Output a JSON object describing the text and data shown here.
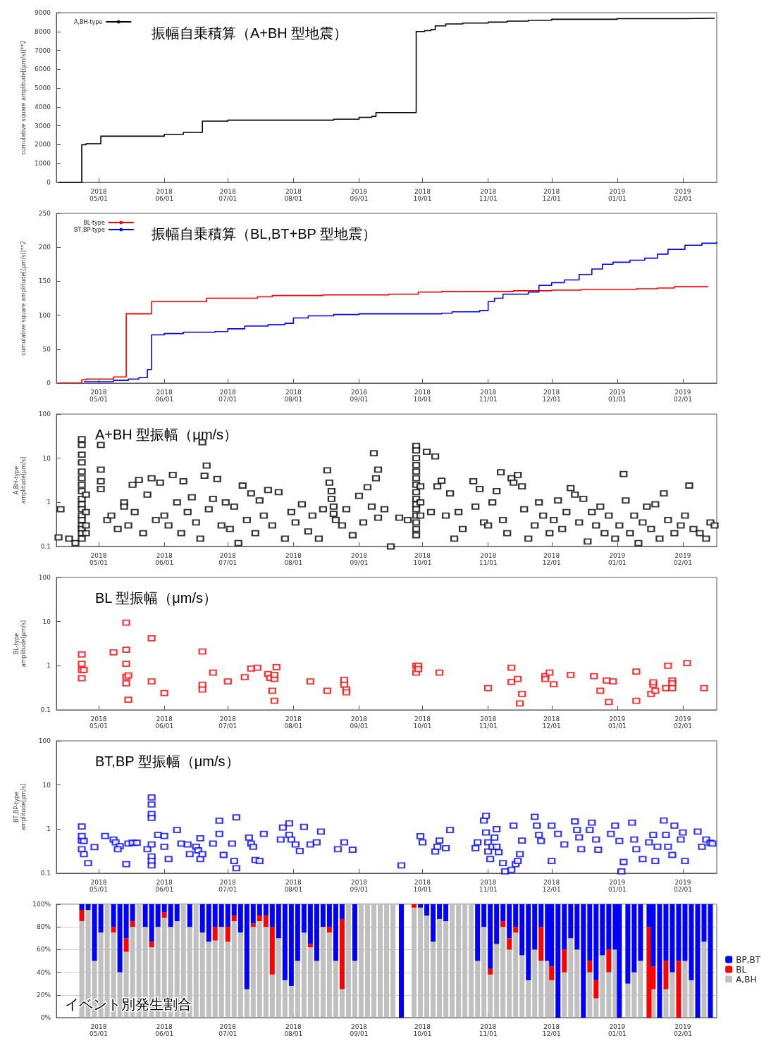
{
  "chart_data": [
    {
      "type": "step",
      "title": "振幅自乗積算（A+BH 型地震）",
      "ylabel": "cumulative square amplitude[(μm/s)]**2",
      "xlim": [
        "2018-04-11",
        "2019-02-17"
      ],
      "ylim": [
        0,
        9000
      ],
      "yticks": [
        0,
        1000,
        2000,
        3000,
        4000,
        5000,
        6000,
        7000,
        8000,
        9000
      ],
      "legend": "top left",
      "xticks": [
        {
          "value": "2018-05-01",
          "label": "2018\n05/01"
        },
        {
          "value": "2018-06-01",
          "label": "2018\n06/01"
        },
        {
          "value": "2018-07-01",
          "label": "2018\n07/01"
        },
        {
          "value": "2018-08-01",
          "label": "2018\n08/01"
        },
        {
          "value": "2018-09-01",
          "label": "2018\n09/01"
        },
        {
          "value": "2018-10-01",
          "label": "2018\n10/01"
        },
        {
          "value": "2018-11-01",
          "label": "2018\n11/01"
        },
        {
          "value": "2018-12-01",
          "label": "2018\n12/01"
        },
        {
          "value": "2019-01-01",
          "label": "2019\n01/01"
        },
        {
          "value": "2019-02-01",
          "label": "2019\n02/01"
        }
      ],
      "series": [
        {
          "name": "A,BH-type",
          "color": "#000000",
          "x": [
            "2018-04-12",
            "2018-04-23",
            "2018-04-25",
            "2018-05-02",
            "2018-06-01",
            "2018-06-10",
            "2018-06-19",
            "2018-07-01",
            "2018-08-20",
            "2018-09-01",
            "2018-09-07",
            "2018-09-09",
            "2018-09-28",
            "2018-10-02",
            "2018-10-05",
            "2018-10-07",
            "2018-10-12",
            "2018-10-20",
            "2018-11-01",
            "2018-11-10",
            "2018-11-20",
            "2018-12-01",
            "2019-01-01",
            "2019-02-01",
            "2019-02-16"
          ],
          "values": [
            0,
            2000,
            2050,
            2450,
            2550,
            2650,
            3250,
            3300,
            3350,
            3450,
            3500,
            3700,
            8000,
            8050,
            8100,
            8300,
            8400,
            8450,
            8500,
            8550,
            8600,
            8650,
            8680,
            8700,
            8720
          ]
        }
      ]
    },
    {
      "type": "step",
      "title": "振幅自乗積算（BL,BT+BP 型地震）",
      "ylabel": "cumulative square amplitude[(μm/s)]**2",
      "xlim": [
        "2018-04-11",
        "2019-02-17"
      ],
      "ylim": [
        0,
        250
      ],
      "yticks": [
        0,
        50,
        100,
        150,
        200,
        250
      ],
      "legend": "top left",
      "xticks": [
        {
          "value": "2018-05-01",
          "label": "2018\n05/01"
        },
        {
          "value": "2018-06-01",
          "label": "2018\n06/01"
        },
        {
          "value": "2018-07-01",
          "label": "2018\n07/01"
        },
        {
          "value": "2018-08-01",
          "label": "2018\n08/01"
        },
        {
          "value": "2018-09-01",
          "label": "2018\n09/01"
        },
        {
          "value": "2018-10-01",
          "label": "2018\n10/01"
        },
        {
          "value": "2018-11-01",
          "label": "2018\n11/01"
        },
        {
          "value": "2018-12-01",
          "label": "2018\n12/01"
        },
        {
          "value": "2019-01-01",
          "label": "2019\n01/01"
        },
        {
          "value": "2019-02-01",
          "label": "2019\n02/01"
        }
      ],
      "series": [
        {
          "name": "BL-type",
          "color": "#ff0000",
          "x": [
            "2018-04-12",
            "2018-04-23",
            "2018-04-25",
            "2018-05-08",
            "2018-05-14",
            "2018-05-26",
            "2018-06-21",
            "2018-07-15",
            "2018-07-22",
            "2018-08-15",
            "2018-09-15",
            "2018-09-29",
            "2018-10-10",
            "2018-11-13",
            "2018-12-01",
            "2018-12-15",
            "2019-01-10",
            "2019-01-20",
            "2019-01-28",
            "2019-02-13"
          ],
          "values": [
            0,
            5,
            6,
            9,
            102,
            120,
            125,
            127,
            129,
            130,
            131,
            134,
            135,
            136,
            137,
            138,
            139,
            140,
            142,
            142
          ]
        },
        {
          "name": "BT,BP-type",
          "color": "#0000ff",
          "x": [
            "2018-04-24",
            "2018-05-08",
            "2018-05-15",
            "2018-05-20",
            "2018-05-24",
            "2018-05-26",
            "2018-06-01",
            "2018-06-10",
            "2018-06-25",
            "2018-07-01",
            "2018-07-09",
            "2018-07-20",
            "2018-07-28",
            "2018-08-01",
            "2018-08-08",
            "2018-08-20",
            "2018-09-01",
            "2018-10-10",
            "2018-10-15",
            "2018-10-28",
            "2018-11-01",
            "2018-11-04",
            "2018-11-08",
            "2018-11-20",
            "2018-11-25",
            "2018-12-01",
            "2018-12-07",
            "2018-12-14",
            "2018-12-20",
            "2018-12-25",
            "2018-12-30",
            "2019-01-07",
            "2019-01-14",
            "2019-01-20",
            "2019-01-25",
            "2019-02-02",
            "2019-02-10",
            "2019-02-17"
          ],
          "values": [
            2,
            4,
            6,
            8,
            20,
            71,
            73,
            75,
            76,
            80,
            84,
            86,
            88,
            96,
            99,
            101,
            102,
            103,
            105,
            107,
            120,
            125,
            131,
            134,
            144,
            148,
            152,
            160,
            168,
            175,
            178,
            181,
            184,
            190,
            197,
            203,
            206,
            208
          ]
        }
      ]
    },
    {
      "type": "scatter",
      "title": "A+BH 型振幅（μm/s）",
      "ylabel": "A,BH-type\namplitude[μm/s]",
      "log": "y",
      "marker": "square",
      "xlim": [
        "2018-04-11",
        "2019-02-17"
      ],
      "ylim": [
        0.1,
        100
      ],
      "yticks": [
        0.1,
        1,
        10,
        100
      ],
      "xticks": [
        {
          "value": "2018-05-01",
          "label": "2018\n05/01"
        },
        {
          "value": "2018-06-01",
          "label": "2018\n06/01"
        },
        {
          "value": "2018-07-01",
          "label": "2018\n07/01"
        },
        {
          "value": "2018-08-01",
          "label": "2018\n08/01"
        },
        {
          "value": "2018-09-01",
          "label": "2018\n09/01"
        },
        {
          "value": "2018-10-01",
          "label": "2018\n10/01"
        },
        {
          "value": "2018-11-01",
          "label": "2018\n11/01"
        },
        {
          "value": "2018-12-01",
          "label": "2018\n12/01"
        },
        {
          "value": "2019-01-01",
          "label": "2019\n01/01"
        },
        {
          "value": "2019-02-01",
          "label": "2019\n02/01"
        }
      ],
      "series": [
        {
          "color": "#000000",
          "x": [
            "2018-04-12",
            "2018-04-13",
            "2018-04-17",
            "2018-04-20",
            "2018-04-23",
            "2018-04-23",
            "2018-04-23",
            "2018-04-23",
            "2018-04-23",
            "2018-04-23",
            "2018-04-23",
            "2018-04-23",
            "2018-04-23",
            "2018-04-23",
            "2018-04-23",
            "2018-04-23",
            "2018-04-23",
            "2018-04-23",
            "2018-04-23",
            "2018-04-23",
            "2018-04-23",
            "2018-04-25",
            "2018-04-25",
            "2018-04-25",
            "2018-04-25",
            "2018-05-02",
            "2018-05-02",
            "2018-05-02",
            "2018-05-02",
            "2018-05-05",
            "2018-05-07",
            "2018-05-10",
            "2018-05-13",
            "2018-05-13",
            "2018-05-15",
            "2018-05-17",
            "2018-05-18",
            "2018-05-20",
            "2018-05-22",
            "2018-05-24",
            "2018-05-26",
            "2018-05-28",
            "2018-05-30",
            "2018-06-01",
            "2018-06-03",
            "2018-06-05",
            "2018-06-07",
            "2018-06-09",
            "2018-06-10",
            "2018-06-12",
            "2018-06-14",
            "2018-06-16",
            "2018-06-18",
            "2018-06-19",
            "2018-06-20",
            "2018-06-21",
            "2018-06-22",
            "2018-06-24",
            "2018-06-26",
            "2018-06-28",
            "2018-06-30",
            "2018-07-02",
            "2018-07-04",
            "2018-07-06",
            "2018-07-08",
            "2018-07-10",
            "2018-07-12",
            "2018-07-14",
            "2018-07-16",
            "2018-07-18",
            "2018-07-20",
            "2018-07-22",
            "2018-07-25",
            "2018-07-28",
            "2018-07-31",
            "2018-08-02",
            "2018-08-05",
            "2018-08-08",
            "2018-08-10",
            "2018-08-13",
            "2018-08-15",
            "2018-08-17",
            "2018-08-18",
            "2018-08-19",
            "2018-08-19",
            "2018-08-20",
            "2018-08-20",
            "2018-08-21",
            "2018-08-24",
            "2018-08-26",
            "2018-08-29",
            "2018-09-01",
            "2018-09-03",
            "2018-09-05",
            "2018-09-07",
            "2018-09-08",
            "2018-09-09",
            "2018-09-10",
            "2018-09-10",
            "2018-09-13",
            "2018-09-16",
            "2018-09-20",
            "2018-09-24",
            "2018-09-28",
            "2018-09-28",
            "2018-09-28",
            "2018-09-28",
            "2018-09-28",
            "2018-09-28",
            "2018-09-28",
            "2018-09-28",
            "2018-09-28",
            "2018-09-28",
            "2018-09-28",
            "2018-09-28",
            "2018-09-28",
            "2018-09-28",
            "2018-09-28",
            "2018-09-30",
            "2018-09-30",
            "2018-09-30",
            "2018-10-03",
            "2018-10-05",
            "2018-10-07",
            "2018-10-08",
            "2018-10-10",
            "2018-10-12",
            "2018-10-14",
            "2018-10-16",
            "2018-10-18",
            "2018-10-20",
            "2018-10-25",
            "2018-10-26",
            "2018-10-28",
            "2018-10-30",
            "2018-11-01",
            "2018-11-03",
            "2018-11-05",
            "2018-11-07",
            "2018-11-08",
            "2018-11-10",
            "2018-11-12",
            "2018-11-13",
            "2018-11-15",
            "2018-11-17",
            "2018-11-18",
            "2018-11-20",
            "2018-11-23",
            "2018-11-25",
            "2018-11-27",
            "2018-11-30",
            "2018-12-02",
            "2018-12-04",
            "2018-12-06",
            "2018-12-08",
            "2018-12-10",
            "2018-12-12",
            "2018-12-14",
            "2018-12-16",
            "2018-12-18",
            "2018-12-20",
            "2018-12-22",
            "2018-12-24",
            "2018-12-26",
            "2018-12-28",
            "2018-12-31",
            "2019-01-02",
            "2019-01-04",
            "2019-01-05",
            "2019-01-07",
            "2019-01-09",
            "2019-01-11",
            "2019-01-13",
            "2019-01-15",
            "2019-01-17",
            "2019-01-19",
            "2019-01-21",
            "2019-01-23",
            "2019-01-25",
            "2019-01-28",
            "2019-01-31",
            "2019-02-02",
            "2019-02-04",
            "2019-02-06",
            "2019-02-09",
            "2019-02-12",
            "2019-02-14",
            "2019-02-16"
          ],
          "values": [
            0.16,
            0.7,
            0.15,
            0.12,
            27,
            20,
            12,
            8,
            5,
            3.5,
            2.5,
            1.8,
            1.2,
            0.9,
            0.7,
            0.5,
            0.4,
            0.3,
            0.25,
            0.2,
            0.15,
            1.5,
            0.6,
            0.3,
            0.2,
            20,
            5.5,
            3,
            2,
            0.4,
            0.5,
            0.25,
            1,
            0.8,
            0.3,
            2.5,
            0.6,
            3.2,
            0.2,
            1.5,
            3.5,
            0.4,
            2.8,
            0.5,
            0.3,
            4.2,
            1,
            0.2,
            3,
            0.6,
            1.3,
            0.35,
            0.15,
            23,
            4,
            6.8,
            0.7,
            1.2,
            3.4,
            0.3,
            1,
            0.25,
            0.8,
            0.12,
            2.4,
            0.4,
            1.6,
            0.2,
            1.1,
            0.5,
            1.9,
            0.3,
            1.7,
            0.15,
            0.6,
            0.35,
            0.9,
            0.22,
            0.5,
            0.15,
            0.7,
            5.3,
            2.8,
            1.8,
            1.2,
            0.8,
            0.55,
            0.4,
            0.3,
            0.7,
            0.18,
            1.4,
            0.35,
            2.2,
            0.8,
            13,
            3.5,
            5.5,
            0.45,
            0.7,
            0.1,
            0.45,
            0.4,
            19,
            15,
            10,
            7,
            5,
            3.5,
            2.5,
            1.7,
            1.2,
            0.9,
            0.7,
            0.5,
            0.35,
            0.25,
            0.18,
            2.3,
            1,
            0.5,
            14,
            0.6,
            11,
            2.3,
            3.1,
            0.5,
            1.6,
            0.15,
            0.6,
            0.25,
            3,
            0.8,
            2,
            0.35,
            0.3,
            1,
            1.8,
            4.8,
            0.4,
            0.2,
            3.5,
            2.8,
            4.2,
            2.3,
            0.7,
            0.15,
            0.3,
            1,
            0.5,
            0.2,
            0.4,
            1.1,
            0.25,
            0.6,
            2.1,
            1.5,
            0.35,
            1.2,
            0.13,
            0.6,
            0.3,
            0.8,
            0.2,
            0.5,
            0.15,
            0.3,
            4.4,
            1.1,
            0.2,
            0.5,
            0.12,
            0.35,
            0.8,
            0.25,
            0.9,
            0.15,
            1.6,
            0.4,
            0.2,
            0.3,
            0.5,
            2.4,
            0.25,
            0.2,
            0.15,
            0.35,
            0.3
          ]
        }
      ]
    },
    {
      "type": "scatter",
      "title": "BL 型振幅（μm/s）",
      "ylabel": "BL-type\namplitude[μm/s]",
      "log": "y",
      "marker": "square",
      "xlim": [
        "2018-04-11",
        "2019-02-17"
      ],
      "ylim": [
        0.1,
        100
      ],
      "yticks": [
        0.1,
        1,
        10,
        100
      ],
      "xticks": [
        {
          "value": "2018-05-01",
          "label": "2018\n05/01"
        },
        {
          "value": "2018-06-01",
          "label": "2018\n06/01"
        },
        {
          "value": "2018-07-01",
          "label": "2018\n07/01"
        },
        {
          "value": "2018-08-01",
          "label": "2018\n08/01"
        },
        {
          "value": "2018-09-01",
          "label": "2018\n09/01"
        },
        {
          "value": "2018-10-01",
          "label": "2018\n10/01"
        },
        {
          "value": "2018-11-01",
          "label": "2018\n11/01"
        },
        {
          "value": "2018-12-01",
          "label": "2018\n12/01"
        },
        {
          "value": "2019-01-01",
          "label": "2019\n01/01"
        },
        {
          "value": "2019-02-01",
          "label": "2019\n02/01"
        }
      ],
      "series": [
        {
          "color": "#ff0000",
          "x": [
            "2018-04-23",
            "2018-04-23",
            "2018-04-23",
            "2018-04-24",
            "2018-04-23",
            "2018-05-08",
            "2018-05-14",
            "2018-05-14",
            "2018-05-14",
            "2018-05-14",
            "2018-05-15",
            "2018-05-14",
            "2018-05-15",
            "2018-05-26",
            "2018-05-26",
            "2018-06-01",
            "2018-06-19",
            "2018-06-19",
            "2018-06-19",
            "2018-06-24",
            "2018-07-01",
            "2018-07-09",
            "2018-07-12",
            "2018-07-15",
            "2018-07-20",
            "2018-07-21",
            "2018-07-23",
            "2018-07-23",
            "2018-07-24",
            "2018-07-22",
            "2018-07-23",
            "2018-08-09",
            "2018-08-17",
            "2018-08-25",
            "2018-08-25",
            "2018-08-26",
            "2018-08-26",
            "2018-09-28",
            "2018-09-29",
            "2018-09-28",
            "2018-09-29",
            "2018-10-09",
            "2018-11-01",
            "2018-11-12",
            "2018-11-12",
            "2018-11-15",
            "2018-11-16",
            "2018-11-17",
            "2018-11-28",
            "2018-11-28",
            "2018-11-30",
            "2018-12-02",
            "2018-12-10",
            "2018-12-21",
            "2018-12-24",
            "2018-12-27",
            "2018-12-30",
            "2018-12-28",
            "2019-01-10",
            "2019-01-10",
            "2019-01-17",
            "2019-01-18",
            "2019-01-19",
            "2019-01-18",
            "2019-01-24",
            "2019-01-25",
            "2019-01-27",
            "2019-01-27",
            "2019-01-27",
            "2019-02-03",
            "2019-02-11"
          ],
          "values": [
            1.8,
            1.1,
            0.8,
            0.8,
            0.52,
            2,
            9.5,
            2.3,
            1.1,
            0.56,
            0.6,
            0.4,
            0.17,
            4.2,
            0.44,
            0.24,
            2.1,
            0.37,
            0.29,
            0.7,
            0.44,
            0.55,
            0.86,
            0.9,
            0.65,
            0.53,
            0.5,
            0.62,
            0.93,
            0.27,
            0.16,
            0.44,
            0.27,
            0.48,
            0.37,
            0.29,
            0.25,
            1,
            1,
            0.7,
            0.84,
            0.7,
            0.31,
            0.9,
            0.43,
            0.5,
            0.14,
            0.23,
            0.58,
            0.5,
            0.7,
            0.38,
            0.62,
            0.58,
            0.27,
            0.46,
            0.44,
            0.15,
            0.74,
            0.16,
            0.23,
            0.37,
            0.27,
            0.42,
            0.31,
            1,
            0.46,
            0.4,
            0.31,
            1.15,
            0.31
          ]
        }
      ]
    },
    {
      "type": "scatter",
      "title": "BT,BP 型振幅（μm/s）",
      "ylabel": "BT,BP-type\namplitude[μm/s]",
      "log": "y",
      "marker": "square",
      "xlim": [
        "2018-04-11",
        "2019-02-17"
      ],
      "ylim": [
        0.1,
        100
      ],
      "yticks": [
        0.1,
        1,
        10,
        100
      ],
      "xticks": [
        {
          "value": "2018-05-01",
          "label": "2018\n05/01"
        },
        {
          "value": "2018-06-01",
          "label": "2018\n06/01"
        },
        {
          "value": "2018-07-01",
          "label": "2018\n07/01"
        },
        {
          "value": "2018-08-01",
          "label": "2018\n08/01"
        },
        {
          "value": "2018-09-01",
          "label": "2018\n09/01"
        },
        {
          "value": "2018-10-01",
          "label": "2018\n10/01"
        },
        {
          "value": "2018-11-01",
          "label": "2018\n11/01"
        },
        {
          "value": "2018-12-01",
          "label": "2018\n12/01"
        },
        {
          "value": "2019-01-01",
          "label": "2019\n01/01"
        },
        {
          "value": "2019-02-01",
          "label": "2019\n02/01"
        }
      ],
      "series": [
        {
          "color": "#0000ff",
          "x": [
            "2018-04-23",
            "2018-04-23",
            "2018-04-24",
            "2018-04-23",
            "2018-04-24",
            "2018-04-23",
            "2018-04-26",
            "2018-04-29",
            "2018-05-04",
            "2018-05-08",
            "2018-05-09",
            "2018-05-11",
            "2018-05-10",
            "2018-05-14",
            "2018-05-15",
            "2018-05-17",
            "2018-05-19",
            "2018-05-24",
            "2018-05-26",
            "2018-05-26",
            "2018-05-26",
            "2018-05-26",
            "2018-05-26",
            "2018-05-26",
            "2018-05-26",
            "2018-05-26",
            "2018-05-29",
            "2018-06-01",
            "2018-06-01",
            "2018-06-03",
            "2018-06-07",
            "2018-06-09",
            "2018-06-12",
            "2018-06-13",
            "2018-06-16",
            "2018-06-17",
            "2018-06-18",
            "2018-06-18",
            "2018-06-19",
            "2018-06-24",
            "2018-06-27",
            "2018-06-27",
            "2018-06-29",
            "2018-07-03",
            "2018-07-05",
            "2018-07-04",
            "2018-07-05",
            "2018-07-11",
            "2018-07-12",
            "2018-07-13",
            "2018-07-14",
            "2018-07-16",
            "2018-07-18",
            "2018-07-26",
            "2018-07-27",
            "2018-07-30",
            "2018-07-30",
            "2018-07-31",
            "2018-08-02",
            "2018-08-04",
            "2018-08-06",
            "2018-08-09",
            "2018-08-12",
            "2018-08-14",
            "2018-08-22",
            "2018-08-25",
            "2018-08-29",
            "2018-09-21",
            "2018-09-30",
            "2018-10-01",
            "2018-10-07",
            "2018-10-09",
            "2018-10-08",
            "2018-10-12",
            "2018-10-14",
            "2018-10-26",
            "2018-10-27",
            "2018-10-30",
            "2018-10-31",
            "2018-10-31",
            "2018-11-01",
            "2018-11-01",
            "2018-11-02",
            "2018-11-03",
            "2018-11-04",
            "2018-11-05",
            "2018-11-05",
            "2018-11-06",
            "2018-11-08",
            "2018-11-09",
            "2018-11-12",
            "2018-11-14",
            "2018-11-15",
            "2018-11-16",
            "2018-11-13",
            "2018-11-17",
            "2018-11-23",
            "2018-11-24",
            "2018-11-25",
            "2018-11-26",
            "2018-12-01",
            "2018-12-01",
            "2018-12-04",
            "2018-12-07",
            "2018-12-12",
            "2018-12-13",
            "2018-12-14",
            "2018-12-15",
            "2018-12-19",
            "2018-12-20",
            "2018-12-22",
            "2018-12-23",
            "2018-12-29",
            "2018-12-31",
            "2019-01-02",
            "2019-01-04",
            "2019-01-03",
            "2019-01-08",
            "2019-01-09",
            "2019-01-10",
            "2019-01-13",
            "2019-01-16",
            "2019-01-18",
            "2019-01-19",
            "2019-01-20",
            "2019-01-23",
            "2019-01-24",
            "2019-01-25",
            "2019-01-27",
            "2019-01-28",
            "2019-01-31",
            "2019-02-01",
            "2019-02-02",
            "2019-02-08",
            "2019-02-10",
            "2019-02-12",
            "2019-02-14",
            "2019-02-15"
          ],
          "values": [
            1.15,
            0.55,
            0.54,
            0.35,
            0.27,
            0.7,
            0.17,
            0.39,
            0.7,
            0.58,
            0.5,
            0.41,
            0.35,
            0.16,
            0.47,
            0.49,
            0.49,
            0.35,
            5.2,
            3.6,
            2.2,
            1.8,
            0.45,
            0.24,
            0.19,
            0.15,
            0.74,
            0.7,
            0.4,
            0.21,
            0.95,
            0.47,
            0.45,
            0.27,
            0.4,
            0.33,
            0.62,
            0.21,
            0.27,
            0.47,
            0.78,
            1.55,
            0.26,
            0.47,
            1.85,
            0.19,
            0.13,
            0.64,
            0.47,
            0.4,
            0.2,
            0.19,
            0.78,
            0.58,
            1.08,
            1.35,
            0.74,
            0.58,
            0.45,
            0.32,
            1.13,
            0.45,
            0.5,
            0.88,
            0.35,
            0.5,
            0.34,
            0.15,
            0.69,
            0.5,
            0.31,
            0.55,
            0.4,
            0.37,
            0.95,
            0.37,
            0.5,
            1.57,
            2,
            0.84,
            0.5,
            0.31,
            0.21,
            0.4,
            0.64,
            1,
            0.4,
            0.3,
            0.17,
            0.11,
            0.12,
            0.16,
            0.19,
            0.27,
            1.2,
            0.55,
            1.9,
            1.2,
            0.74,
            0.54,
            1.2,
            0.19,
            0.78,
            0.45,
            1.49,
            0.95,
            0.65,
            0.35,
            0.95,
            1.4,
            0.58,
            0.34,
            0.78,
            1.2,
            0.54,
            0.18,
            0.11,
            1.4,
            0.58,
            0.35,
            0.21,
            0.5,
            0.74,
            0.19,
            0.4,
            1.57,
            0.74,
            0.4,
            0.26,
            1.2,
            0.58,
            0.84,
            0.19,
            0.88,
            0.4,
            0.58,
            0.49,
            0.47
          ]
        }
      ]
    },
    {
      "type": "bar",
      "stacked": true,
      "annotations": [
        "イベント別発生割合"
      ],
      "grid": "y",
      "legend": "right",
      "xlim": [
        "2018-04-11",
        "2019-02-17"
      ],
      "ylim": [
        0,
        100
      ],
      "yticks": [
        {
          "value": 0,
          "label": "0%"
        },
        {
          "value": 20,
          "label": "20%"
        },
        {
          "value": 40,
          "label": "40%"
        },
        {
          "value": 60,
          "label": "60%"
        },
        {
          "value": 80,
          "label": "80%"
        },
        {
          "value": 100,
          "label": "100%"
        }
      ],
      "xticks": [
        {
          "value": "2018-05-01",
          "label": "2018\n05/01"
        },
        {
          "value": "2018-06-01",
          "label": "2018\n06/01"
        },
        {
          "value": "2018-07-01",
          "label": "2018\n07/01"
        },
        {
          "value": "2018-08-01",
          "label": "2018\n08/01"
        },
        {
          "value": "2018-09-01",
          "label": "2018\n09/01"
        },
        {
          "value": "2018-10-01",
          "label": "2018\n10/01"
        },
        {
          "value": "2018-11-01",
          "label": "2018\n11/01"
        },
        {
          "value": "2018-12-01",
          "label": "2018\n12/01"
        },
        {
          "value": "2019-01-01",
          "label": "2019\n01/01"
        },
        {
          "value": "2019-02-01",
          "label": "2019\n02/01"
        }
      ],
      "x": [
        "2018-04-23",
        "2018-04-26",
        "2018-04-29",
        "2018-05-02",
        "2018-05-05",
        "2018-05-08",
        "2018-05-11",
        "2018-05-14",
        "2018-05-17",
        "2018-05-20",
        "2018-05-23",
        "2018-05-26",
        "2018-05-29",
        "2018-06-01",
        "2018-06-04",
        "2018-06-07",
        "2018-06-10",
        "2018-06-13",
        "2018-06-16",
        "2018-06-19",
        "2018-06-22",
        "2018-06-25",
        "2018-06-28",
        "2018-07-01",
        "2018-07-04",
        "2018-07-07",
        "2018-07-10",
        "2018-07-13",
        "2018-07-16",
        "2018-07-19",
        "2018-07-22",
        "2018-07-25",
        "2018-07-28",
        "2018-07-31",
        "2018-08-03",
        "2018-08-06",
        "2018-08-09",
        "2018-08-12",
        "2018-08-15",
        "2018-08-18",
        "2018-08-21",
        "2018-08-24",
        "2018-08-27",
        "2018-08-30",
        "2018-09-02",
        "2018-09-05",
        "2018-09-08",
        "2018-09-11",
        "2018-09-14",
        "2018-09-17",
        "2018-09-21",
        "2018-09-27",
        "2018-09-30",
        "2018-10-03",
        "2018-10-06",
        "2018-10-09",
        "2018-10-12",
        "2018-10-15",
        "2018-10-18",
        "2018-10-21",
        "2018-10-24",
        "2018-10-27",
        "2018-10-30",
        "2018-11-02",
        "2018-11-05",
        "2018-11-08",
        "2018-11-11",
        "2018-11-14",
        "2018-11-17",
        "2018-11-20",
        "2018-11-23",
        "2018-11-26",
        "2018-11-29",
        "2018-12-01",
        "2018-12-04",
        "2018-12-07",
        "2018-12-10",
        "2018-12-13",
        "2018-12-16",
        "2018-12-19",
        "2018-12-22",
        "2018-12-25",
        "2018-12-28",
        "2018-12-31",
        "2019-01-02",
        "2019-01-06",
        "2019-01-09",
        "2019-01-12",
        "2019-01-16",
        "2019-01-18",
        "2019-01-21",
        "2019-01-24",
        "2019-01-27",
        "2019-01-30",
        "2019-02-02",
        "2019-02-05",
        "2019-02-08",
        "2019-02-11",
        "2019-02-14"
      ],
      "series": [
        {
          "name": "A,BH",
          "color": "#c0c0c0",
          "values": [
            85,
            95,
            50,
            75,
            100,
            75,
            40,
            58,
            80,
            100,
            80,
            62,
            80,
            88,
            80,
            85,
            100,
            80,
            100,
            75,
            67,
            68,
            80,
            67,
            85,
            75,
            25,
            80,
            85,
            80,
            38,
            70,
            33,
            28,
            50,
            75,
            62,
            50,
            80,
            75,
            50,
            25,
            100,
            50,
            100,
            100,
            100,
            100,
            100,
            100,
            0,
            97,
            97,
            90,
            67,
            87,
            85,
            100,
            100,
            100,
            100,
            50,
            80,
            38,
            65,
            80,
            60,
            75,
            55,
            33,
            60,
            50,
            50,
            33,
            0,
            40,
            70,
            60,
            0,
            40,
            17,
            55,
            40,
            60,
            0,
            30,
            40,
            50,
            0,
            25,
            0,
            25,
            40,
            0,
            50,
            33,
            0,
            67,
            0
          ]
        },
        {
          "name": "BL",
          "color": "#ff0000",
          "values": [
            10,
            0,
            0,
            0,
            0,
            5,
            0,
            12,
            5,
            0,
            0,
            5,
            0,
            5,
            0,
            0,
            0,
            0,
            0,
            0,
            0,
            12,
            0,
            13,
            5,
            0,
            0,
            3,
            5,
            10,
            42,
            0,
            0,
            0,
            0,
            0,
            3,
            0,
            0,
            5,
            0,
            62,
            0,
            0,
            0,
            0,
            0,
            0,
            0,
            0,
            0,
            3,
            0,
            0,
            0,
            0,
            0,
            0,
            0,
            0,
            0,
            0,
            0,
            5,
            0,
            5,
            10,
            5,
            0,
            0,
            0,
            30,
            0,
            12,
            0,
            20,
            0,
            0,
            0,
            10,
            16,
            0,
            20,
            0,
            0,
            0,
            0,
            0,
            80,
            20,
            0,
            25,
            0,
            50,
            0,
            0,
            0,
            0,
            0
          ]
        },
        {
          "name": "BP,BT",
          "color": "#0000ff",
          "values": [
            5,
            5,
            50,
            25,
            0,
            20,
            60,
            30,
            15,
            0,
            20,
            33,
            20,
            7,
            20,
            15,
            0,
            20,
            0,
            25,
            33,
            20,
            20,
            20,
            10,
            25,
            75,
            17,
            10,
            10,
            20,
            30,
            67,
            72,
            50,
            25,
            35,
            50,
            20,
            20,
            50,
            13,
            0,
            50,
            0,
            0,
            0,
            0,
            0,
            0,
            100,
            0,
            3,
            10,
            33,
            13,
            15,
            0,
            0,
            0,
            0,
            50,
            20,
            57,
            35,
            15,
            30,
            20,
            45,
            67,
            40,
            20,
            50,
            55,
            100,
            40,
            30,
            40,
            100,
            50,
            67,
            45,
            40,
            40,
            100,
            70,
            60,
            50,
            20,
            55,
            100,
            50,
            60,
            50,
            50,
            67,
            100,
            33,
            100
          ]
        }
      ]
    }
  ]
}
